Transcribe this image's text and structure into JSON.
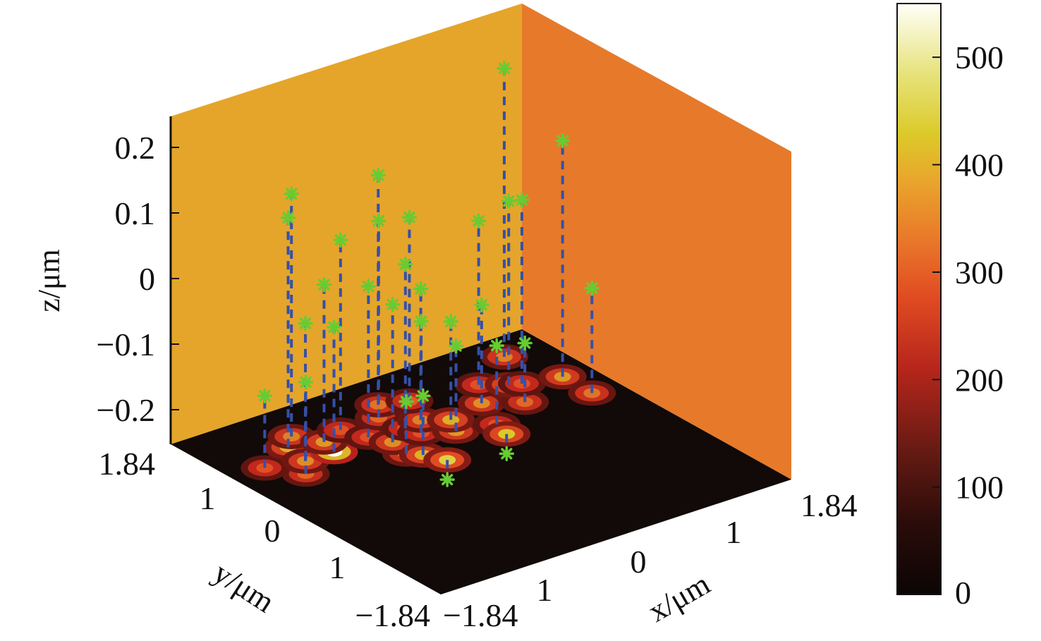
{
  "chart_data": {
    "type": "scatter",
    "subtype": "3d-stem-scatter-with-heatmap-floor",
    "title": "",
    "xlabel": "x/μm",
    "ylabel": "y/μm",
    "zlabel": "z/μm",
    "xlim": [
      -1.84,
      1.84
    ],
    "ylim": [
      -1.84,
      1.84
    ],
    "zlim": [
      -0.25,
      0.25
    ],
    "x_ticks": [
      "−1.84",
      "1",
      "0",
      "1",
      "1.84"
    ],
    "y_ticks": [
      "1.84",
      "1",
      "0",
      "1",
      "−1.84"
    ],
    "z_ticks": [
      "0.2",
      "0.1",
      "0",
      "−0.1",
      "−0.2"
    ],
    "colorbar": {
      "min": 0,
      "max": 550,
      "ticks": [
        "500",
        "400",
        "300",
        "200",
        "100",
        "0"
      ],
      "tick_values": [
        500,
        400,
        300,
        200,
        100,
        0
      ]
    },
    "colors": {
      "left_wall": "#E5A52A",
      "right_wall": "#E67A2A",
      "floor": "#110A08",
      "stem": "#3650A8",
      "marker": "#66CC33"
    },
    "points": [
      {
        "x": -1.5,
        "y": 1.0,
        "z": -0.14,
        "intensity": 300
      },
      {
        "x": -1.3,
        "y": 0.7,
        "z": -0.11,
        "intensity": 320
      },
      {
        "x": -1.1,
        "y": 1.2,
        "z": 0.1,
        "intensity": 380
      },
      {
        "x": -1.15,
        "y": 0.9,
        "z": -0.04,
        "intensity": 350
      },
      {
        "x": -0.95,
        "y": 1.35,
        "z": 0.12,
        "intensity": 340
      },
      {
        "x": -0.85,
        "y": 0.9,
        "z": -0.06,
        "intensity": 550
      },
      {
        "x": -0.8,
        "y": 1.1,
        "z": -0.01,
        "intensity": 360
      },
      {
        "x": -0.55,
        "y": 1.2,
        "z": 0.04,
        "intensity": 300
      },
      {
        "x": -0.45,
        "y": 0.95,
        "z": -0.02,
        "intensity": 300
      },
      {
        "x": -0.4,
        "y": 0.5,
        "z": -0.17,
        "intensity": 340
      },
      {
        "x": -0.35,
        "y": 0.75,
        "z": -0.04,
        "intensity": 350
      },
      {
        "x": -0.3,
        "y": 0.4,
        "z": -0.16,
        "intensity": 380
      },
      {
        "x": -0.2,
        "y": 0.2,
        "z": -0.28,
        "intensity": 420
      },
      {
        "x": -0.15,
        "y": 1.2,
        "z": 0.05,
        "intensity": 320
      },
      {
        "x": -0.1,
        "y": 0.9,
        "z": 0.0,
        "intensity": 300
      },
      {
        "x": 0.0,
        "y": 1.4,
        "z": 0.1,
        "intensity": 330
      },
      {
        "x": -0.05,
        "y": 0.75,
        "z": -0.08,
        "intensity": 300
      },
      {
        "x": 0.1,
        "y": 0.95,
        "z": -0.05,
        "intensity": 340
      },
      {
        "x": 0.25,
        "y": 1.3,
        "z": 0.03,
        "intensity": 310
      },
      {
        "x": 0.2,
        "y": 0.6,
        "z": -0.12,
        "intensity": 360
      },
      {
        "x": 0.3,
        "y": 0.8,
        "z": -0.1,
        "intensity": 380
      },
      {
        "x": 0.55,
        "y": 0.5,
        "z": -0.13,
        "intensity": 300
      },
      {
        "x": 0.5,
        "y": 0.3,
        "z": -0.28,
        "intensity": 400
      },
      {
        "x": 0.7,
        "y": 0.9,
        "z": -0.1,
        "intensity": 350
      },
      {
        "x": 0.9,
        "y": 1.2,
        "z": 0.0,
        "intensity": 300
      },
      {
        "x": 1.0,
        "y": 0.7,
        "z": -0.16,
        "intensity": 320
      },
      {
        "x": 1.1,
        "y": 1.05,
        "z": 0.03,
        "intensity": 380
      },
      {
        "x": 1.2,
        "y": 1.0,
        "z": 0.03,
        "intensity": 300
      },
      {
        "x": 1.4,
        "y": 1.5,
        "z": 0.19,
        "intensity": 340
      },
      {
        "x": 1.55,
        "y": 0.9,
        "z": 0.11,
        "intensity": 360
      },
      {
        "x": 1.55,
        "y": 0.5,
        "z": -0.09,
        "intensity": 330
      }
    ]
  }
}
